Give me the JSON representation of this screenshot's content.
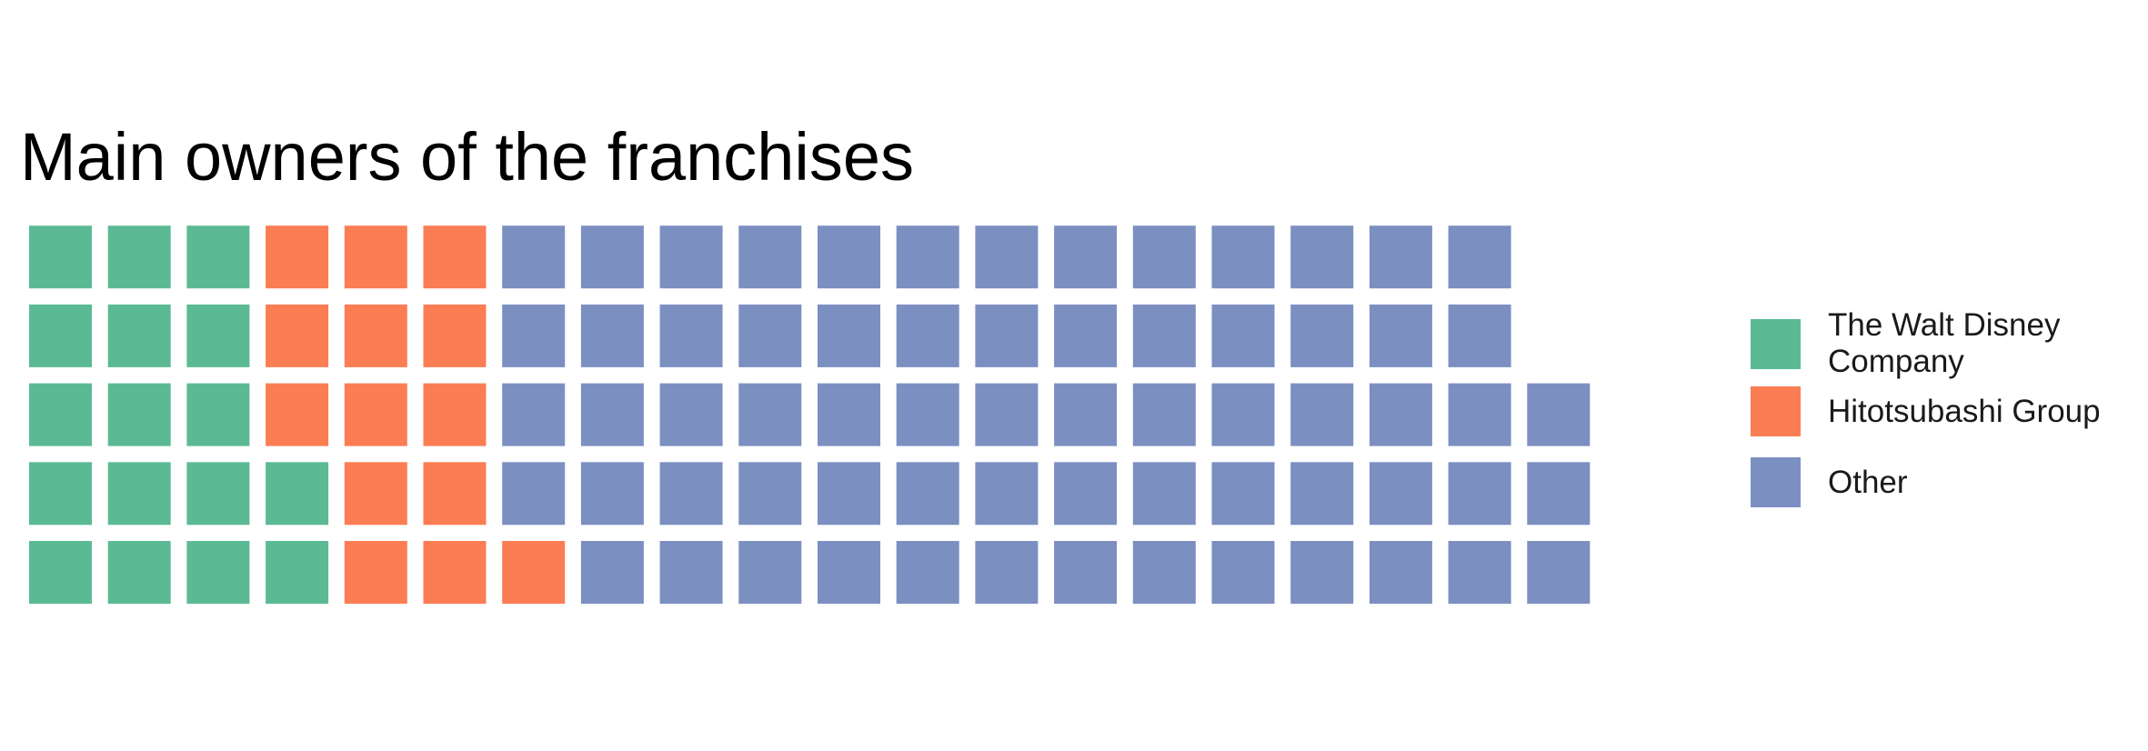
{
  "chart_data": {
    "type": "waffle",
    "title": "Main owners of the franchises",
    "rows": 5,
    "fill_order": "column-major, bottom-to-top",
    "series": [
      {
        "name": "The Walt Disney Company",
        "value": 17,
        "color": "#5BBA93"
      },
      {
        "name": "Hitotsubashi Group",
        "value": 14,
        "color": "#FA7D54"
      },
      {
        "name": "Other",
        "value": 67,
        "color": "#7C8FC1"
      }
    ],
    "legend_position": "right",
    "grid": false
  }
}
